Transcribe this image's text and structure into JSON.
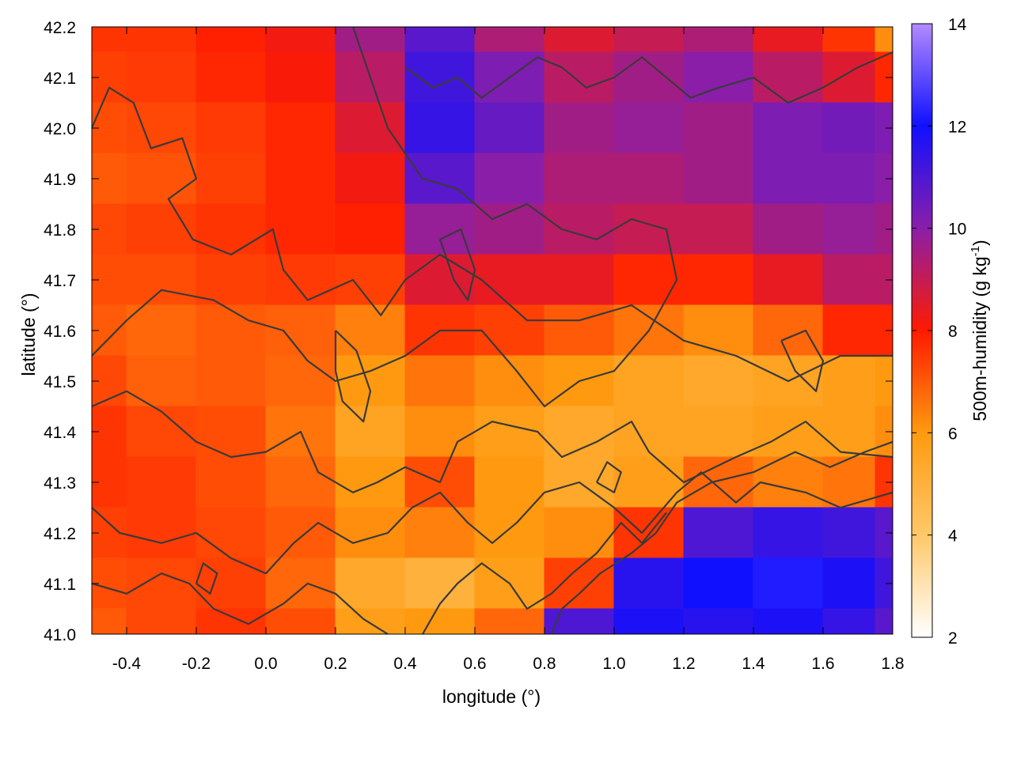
{
  "chart_data": {
    "type": "heatmap",
    "xlabel": "longitude (°)",
    "ylabel": "latitude (°)",
    "colorbar_label": "500m-humidity (g kg-1)",
    "colorbar_label_parts": {
      "main": "500m-humidity (g kg",
      "exp": "-1",
      "close": ")"
    },
    "xlim": [
      -0.5,
      1.8
    ],
    "ylim": [
      41.0,
      42.2
    ],
    "clim": [
      2,
      14
    ],
    "x_ticks": [
      {
        "value": -0.4,
        "label": "-0.4"
      },
      {
        "value": -0.2,
        "label": "-0.2"
      },
      {
        "value": 0.0,
        "label": "0.0"
      },
      {
        "value": 0.2,
        "label": "0.2"
      },
      {
        "value": 0.4,
        "label": "0.4"
      },
      {
        "value": 0.6,
        "label": "0.6"
      },
      {
        "value": 0.8,
        "label": "0.8"
      },
      {
        "value": 1.0,
        "label": "1.0"
      },
      {
        "value": 1.2,
        "label": "1.2"
      },
      {
        "value": 1.4,
        "label": "1.4"
      },
      {
        "value": 1.6,
        "label": "1.6"
      },
      {
        "value": 1.8,
        "label": "1.8"
      }
    ],
    "y_ticks": [
      {
        "value": 41.0,
        "label": "41.0"
      },
      {
        "value": 41.1,
        "label": "41.1"
      },
      {
        "value": 41.2,
        "label": "41.2"
      },
      {
        "value": 41.3,
        "label": "41.3"
      },
      {
        "value": 41.4,
        "label": "41.4"
      },
      {
        "value": 41.5,
        "label": "41.5"
      },
      {
        "value": 41.6,
        "label": "41.6"
      },
      {
        "value": 41.7,
        "label": "41.7"
      },
      {
        "value": 41.8,
        "label": "41.8"
      },
      {
        "value": 41.9,
        "label": "41.9"
      },
      {
        "value": 42.0,
        "label": "42.0"
      },
      {
        "value": 42.1,
        "label": "42.1"
      },
      {
        "value": 42.2,
        "label": "42.2"
      }
    ],
    "colorbar_ticks": [
      {
        "value": 2,
        "label": "2"
      },
      {
        "value": 4,
        "label": "4"
      },
      {
        "value": 6,
        "label": "6"
      },
      {
        "value": 8,
        "label": "8"
      },
      {
        "value": 10,
        "label": "10"
      },
      {
        "value": 12,
        "label": "12"
      },
      {
        "value": 14,
        "label": "14"
      }
    ],
    "colormap": [
      {
        "value": 2,
        "color": "#ffffff"
      },
      {
        "value": 4,
        "color": "#ffc86a"
      },
      {
        "value": 6,
        "color": "#ff9a10"
      },
      {
        "value": 8,
        "color": "#ff1a00"
      },
      {
        "value": 10,
        "color": "#8a1ea8"
      },
      {
        "value": 12,
        "color": "#1010ff"
      },
      {
        "value": 14,
        "color": "#b48aff"
      }
    ],
    "field": {
      "lon": [
        -0.5,
        -0.3,
        -0.1,
        0.1,
        0.3,
        0.5,
        0.7,
        0.9,
        1.1,
        1.3,
        1.5,
        1.7,
        1.8
      ],
      "lat": [
        42.2,
        42.1,
        42.0,
        41.9,
        41.8,
        41.7,
        41.6,
        41.5,
        41.4,
        41.3,
        41.2,
        41.1,
        41.0
      ],
      "values": [
        [
          7.6,
          7.6,
          7.9,
          8.2,
          9.6,
          10.8,
          9.4,
          8.6,
          9.0,
          9.4,
          8.4,
          7.6,
          6.2
        ],
        [
          7.4,
          7.5,
          7.8,
          8.1,
          9.2,
          11.2,
          10.2,
          9.2,
          9.6,
          10.0,
          9.2,
          8.6,
          7.8
        ],
        [
          7.2,
          7.3,
          7.5,
          7.8,
          8.6,
          11.4,
          10.6,
          9.6,
          9.8,
          9.6,
          10.2,
          10.4,
          10.2
        ],
        [
          7.0,
          7.1,
          7.4,
          7.8,
          8.2,
          10.8,
          10.0,
          9.4,
          9.4,
          9.6,
          10.2,
          10.2,
          10.0
        ],
        [
          7.3,
          7.4,
          7.6,
          7.8,
          7.9,
          9.8,
          9.6,
          9.2,
          9.0,
          9.0,
          9.6,
          9.8,
          9.6
        ],
        [
          7.2,
          7.2,
          7.4,
          7.5,
          7.4,
          8.6,
          8.4,
          8.4,
          7.8,
          7.8,
          8.4,
          9.2,
          9.2
        ],
        [
          7.0,
          6.8,
          7.0,
          6.9,
          6.4,
          7.6,
          7.4,
          7.0,
          6.6,
          6.2,
          6.8,
          7.8,
          7.8
        ],
        [
          7.3,
          6.9,
          7.0,
          6.8,
          6.0,
          6.6,
          6.2,
          6.0,
          5.6,
          5.4,
          5.6,
          5.8,
          6.0
        ],
        [
          7.6,
          7.3,
          7.2,
          6.6,
          5.6,
          6.2,
          5.8,
          5.4,
          5.6,
          5.6,
          5.8,
          5.8,
          6.2
        ],
        [
          7.6,
          7.5,
          7.2,
          6.8,
          6.0,
          7.2,
          6.0,
          5.4,
          5.8,
          6.8,
          6.4,
          6.6,
          7.6
        ],
        [
          7.4,
          7.5,
          7.3,
          7.0,
          6.2,
          6.4,
          6.0,
          6.2,
          7.6,
          11.0,
          11.4,
          11.2,
          10.8
        ],
        [
          7.2,
          7.3,
          7.4,
          6.8,
          5.4,
          5.0,
          5.8,
          7.4,
          11.6,
          12.0,
          12.2,
          11.8,
          11.2
        ],
        [
          7.0,
          7.3,
          7.6,
          7.2,
          5.8,
          6.0,
          6.8,
          11.0,
          11.8,
          11.6,
          11.8,
          11.4,
          10.8
        ]
      ]
    },
    "contours": [
      [
        [
          -0.5,
          42.0
        ],
        [
          -0.45,
          42.08
        ],
        [
          -0.38,
          42.05
        ],
        [
          -0.33,
          41.96
        ],
        [
          -0.24,
          41.98
        ],
        [
          -0.2,
          41.9
        ],
        [
          -0.28,
          41.86
        ],
        [
          -0.21,
          41.78
        ],
        [
          -0.1,
          41.75
        ],
        [
          0.02,
          41.8
        ],
        [
          0.05,
          41.72
        ],
        [
          0.12,
          41.66
        ],
        [
          0.25,
          41.7
        ],
        [
          0.33,
          41.63
        ],
        [
          0.4,
          41.7
        ],
        [
          0.5,
          41.75
        ],
        [
          0.62,
          41.7
        ],
        [
          0.75,
          41.62
        ],
        [
          0.9,
          41.62
        ],
        [
          1.05,
          41.65
        ],
        [
          1.2,
          41.58
        ],
        [
          1.35,
          41.55
        ],
        [
          1.5,
          41.5
        ],
        [
          1.65,
          41.55
        ],
        [
          1.8,
          41.55
        ]
      ],
      [
        [
          -0.5,
          41.55
        ],
        [
          -0.4,
          41.62
        ],
        [
          -0.3,
          41.68
        ],
        [
          -0.15,
          41.66
        ],
        [
          -0.05,
          41.62
        ],
        [
          0.05,
          41.6
        ],
        [
          0.12,
          41.54
        ],
        [
          0.2,
          41.5
        ],
        [
          0.3,
          41.52
        ],
        [
          0.4,
          41.55
        ],
        [
          0.5,
          41.6
        ],
        [
          0.62,
          41.6
        ],
        [
          0.72,
          41.52
        ],
        [
          0.8,
          41.45
        ],
        [
          0.9,
          41.5
        ],
        [
          1.0,
          41.52
        ],
        [
          1.1,
          41.6
        ],
        [
          1.18,
          41.7
        ],
        [
          1.15,
          41.8
        ],
        [
          1.05,
          41.82
        ],
        [
          0.95,
          41.78
        ],
        [
          0.85,
          41.8
        ],
        [
          0.75,
          41.85
        ],
        [
          0.65,
          41.82
        ],
        [
          0.55,
          41.88
        ],
        [
          0.45,
          41.9
        ],
        [
          0.35,
          42.0
        ],
        [
          0.3,
          42.1
        ],
        [
          0.25,
          42.2
        ]
      ],
      [
        [
          -0.5,
          41.45
        ],
        [
          -0.4,
          41.48
        ],
        [
          -0.3,
          41.44
        ],
        [
          -0.2,
          41.38
        ],
        [
          -0.1,
          41.35
        ],
        [
          0.0,
          41.36
        ],
        [
          0.1,
          41.4
        ],
        [
          0.15,
          41.32
        ],
        [
          0.25,
          41.28
        ],
        [
          0.32,
          41.3
        ],
        [
          0.4,
          41.33
        ],
        [
          0.5,
          41.3
        ],
        [
          0.55,
          41.38
        ],
        [
          0.65,
          41.42
        ],
        [
          0.78,
          41.4
        ],
        [
          0.85,
          41.35
        ],
        [
          0.95,
          41.38
        ],
        [
          1.05,
          41.42
        ],
        [
          1.1,
          41.36
        ],
        [
          1.2,
          41.3
        ],
        [
          1.35,
          41.35
        ],
        [
          1.45,
          41.38
        ],
        [
          1.55,
          41.42
        ],
        [
          1.65,
          41.36
        ],
        [
          1.8,
          41.35
        ]
      ],
      [
        [
          -0.5,
          41.25
        ],
        [
          -0.42,
          41.2
        ],
        [
          -0.3,
          41.18
        ],
        [
          -0.2,
          41.2
        ],
        [
          -0.1,
          41.15
        ],
        [
          0.0,
          41.12
        ],
        [
          0.08,
          41.18
        ],
        [
          0.15,
          41.22
        ],
        [
          0.25,
          41.18
        ],
        [
          0.35,
          41.2
        ],
        [
          0.42,
          41.25
        ],
        [
          0.5,
          41.28
        ],
        [
          0.58,
          41.22
        ],
        [
          0.65,
          41.18
        ],
        [
          0.72,
          41.22
        ],
        [
          0.8,
          41.28
        ],
        [
          0.9,
          41.3
        ],
        [
          1.0,
          41.25
        ],
        [
          1.08,
          41.2
        ],
        [
          1.18,
          41.28
        ],
        [
          1.25,
          41.32
        ],
        [
          1.35,
          41.26
        ],
        [
          1.42,
          41.3
        ],
        [
          1.55,
          41.28
        ],
        [
          1.65,
          41.25
        ],
        [
          1.8,
          41.28
        ]
      ],
      [
        [
          -0.5,
          41.1
        ],
        [
          -0.4,
          41.08
        ],
        [
          -0.3,
          41.12
        ],
        [
          -0.22,
          41.1
        ],
        [
          -0.15,
          41.05
        ],
        [
          -0.05,
          41.02
        ],
        [
          0.05,
          41.06
        ],
        [
          0.12,
          41.1
        ],
        [
          0.2,
          41.08
        ],
        [
          0.28,
          41.03
        ],
        [
          0.35,
          41.0
        ]
      ],
      [
        [
          0.45,
          41.0
        ],
        [
          0.5,
          41.06
        ],
        [
          0.55,
          41.1
        ],
        [
          0.62,
          41.14
        ],
        [
          0.7,
          41.1
        ],
        [
          0.75,
          41.05
        ],
        [
          0.82,
          41.08
        ],
        [
          0.88,
          41.12
        ],
        [
          0.95,
          41.16
        ],
        [
          1.02,
          41.22
        ],
        [
          1.08,
          41.18
        ],
        [
          1.15,
          41.24
        ]
      ],
      [
        [
          0.82,
          41.0
        ],
        [
          0.85,
          41.05
        ],
        [
          0.9,
          41.08
        ],
        [
          0.96,
          41.12
        ],
        [
          1.05,
          41.16
        ],
        [
          1.12,
          41.2
        ],
        [
          1.18,
          41.26
        ],
        [
          1.28,
          41.3
        ],
        [
          1.4,
          41.32
        ],
        [
          1.52,
          41.36
        ],
        [
          1.62,
          41.33
        ],
        [
          1.72,
          41.36
        ],
        [
          1.8,
          41.38
        ]
      ],
      [
        [
          0.2,
          41.6
        ],
        [
          0.26,
          41.56
        ],
        [
          0.3,
          41.48
        ],
        [
          0.28,
          41.42
        ],
        [
          0.22,
          41.46
        ],
        [
          0.2,
          41.52
        ],
        [
          0.2,
          41.6
        ]
      ],
      [
        [
          0.5,
          41.78
        ],
        [
          0.54,
          41.7
        ],
        [
          0.58,
          41.66
        ],
        [
          0.6,
          41.72
        ],
        [
          0.56,
          41.8
        ],
        [
          0.5,
          41.78
        ]
      ],
      [
        [
          0.95,
          41.3
        ],
        [
          0.98,
          41.34
        ],
        [
          1.02,
          41.32
        ],
        [
          1.0,
          41.28
        ],
        [
          0.95,
          41.3
        ]
      ],
      [
        [
          0.4,
          42.12
        ],
        [
          0.48,
          42.08
        ],
        [
          0.55,
          42.1
        ],
        [
          0.62,
          42.06
        ],
        [
          0.7,
          42.1
        ],
        [
          0.78,
          42.14
        ],
        [
          0.85,
          42.12
        ],
        [
          0.92,
          42.08
        ],
        [
          1.0,
          42.1
        ],
        [
          1.08,
          42.14
        ],
        [
          1.15,
          42.1
        ],
        [
          1.22,
          42.06
        ],
        [
          1.3,
          42.08
        ],
        [
          1.4,
          42.1
        ],
        [
          1.5,
          42.05
        ],
        [
          1.6,
          42.08
        ],
        [
          1.7,
          42.12
        ],
        [
          1.8,
          42.15
        ]
      ],
      [
        [
          1.48,
          41.58
        ],
        [
          1.52,
          41.52
        ],
        [
          1.58,
          41.48
        ],
        [
          1.6,
          41.54
        ],
        [
          1.55,
          41.6
        ],
        [
          1.48,
          41.58
        ]
      ],
      [
        [
          -0.2,
          41.1
        ],
        [
          -0.16,
          41.08
        ],
        [
          -0.14,
          41.12
        ],
        [
          -0.18,
          41.14
        ],
        [
          -0.2,
          41.1
        ]
      ]
    ]
  }
}
